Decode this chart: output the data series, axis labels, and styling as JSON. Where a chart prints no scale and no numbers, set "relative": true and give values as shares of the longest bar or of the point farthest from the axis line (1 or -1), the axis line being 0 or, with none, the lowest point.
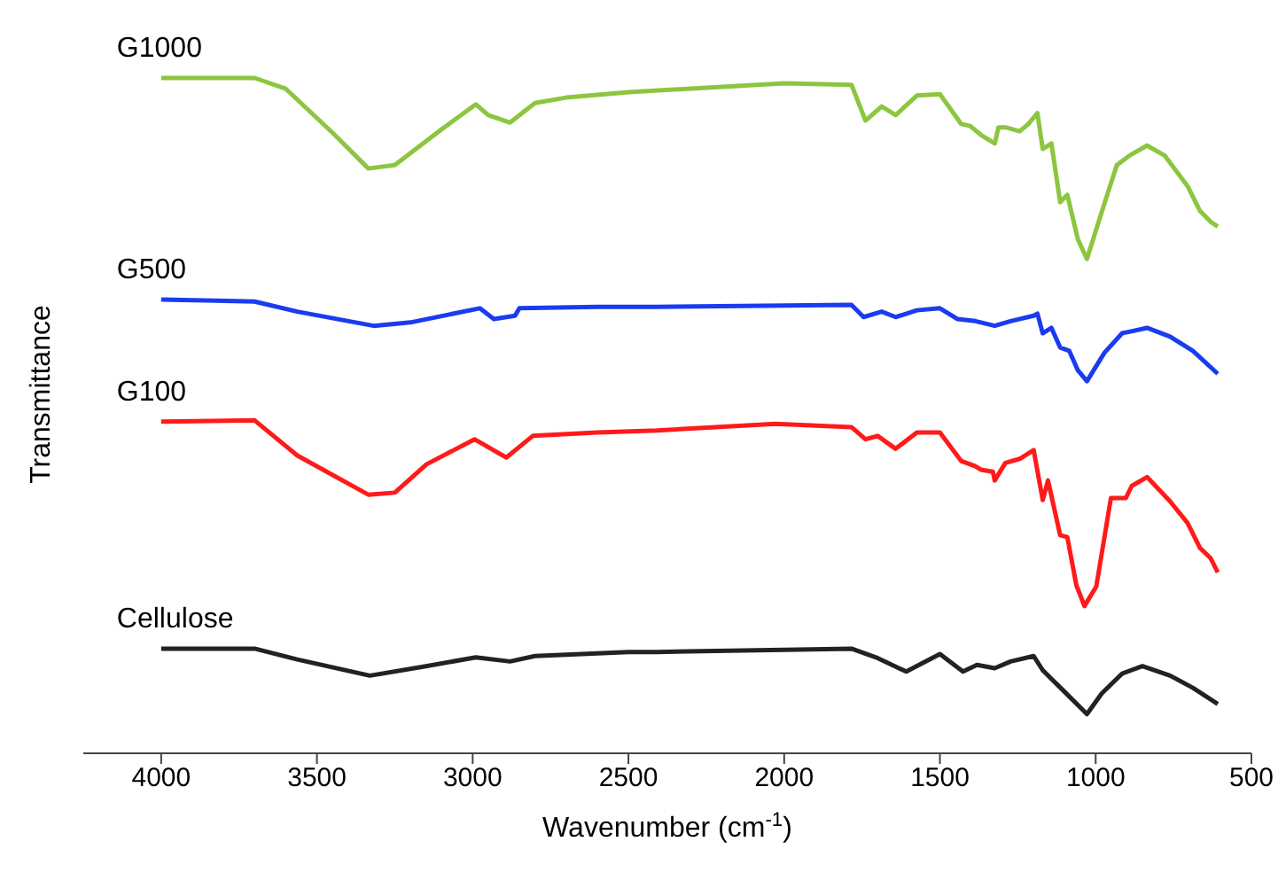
{
  "chart_data": {
    "type": "line",
    "relative": true,
    "xlabel": "Wavenumber (cm$^{-1}$)",
    "ylabel": "Transmittance",
    "xlim": [
      4250,
      500
    ],
    "xticks": [
      4000,
      3500,
      3000,
      2500,
      2000,
      1500,
      1000,
      500
    ],
    "grid": false,
    "legend": false,
    "marker": "none",
    "line_style": "solid",
    "series": [
      {
        "name": "G1000",
        "color": "#8cc63f",
        "x": [
          4000,
          3700,
          3600,
          3450,
          3335,
          3250,
          3100,
          2990,
          2950,
          2880,
          2800,
          2700,
          2500,
          2200,
          2000,
          1784,
          1739,
          1687,
          1642,
          1574,
          1500,
          1432,
          1403,
          1369,
          1324,
          1312,
          1290,
          1244,
          1216,
          1187,
          1170,
          1142,
          1114,
          1091,
          1057,
          1028,
          972,
          932,
          892,
          835,
          778,
          705,
          665,
          631,
          608
        ],
        "values": [
          1.0,
          1.0,
          0.984,
          0.919,
          0.866,
          0.871,
          0.924,
          0.961,
          0.945,
          0.934,
          0.963,
          0.971,
          0.979,
          0.987,
          0.992,
          0.99,
          0.937,
          0.958,
          0.945,
          0.974,
          0.976,
          0.932,
          0.929,
          0.916,
          0.903,
          0.927,
          0.927,
          0.921,
          0.932,
          0.948,
          0.895,
          0.903,
          0.816,
          0.827,
          0.761,
          0.732,
          0.814,
          0.871,
          0.885,
          0.9,
          0.885,
          0.84,
          0.803,
          0.787,
          0.78
        ]
      },
      {
        "name": "G500",
        "color": "#1a3cf0",
        "x": [
          4000,
          3700,
          3563,
          3318,
          3200,
          2977,
          2932,
          2864,
          2850,
          2600,
          2409,
          1784,
          1745,
          1687,
          1642,
          1574,
          1500,
          1443,
          1386,
          1324,
          1273,
          1199,
          1187,
          1170,
          1142,
          1114,
          1085,
          1057,
          1028,
          972,
          915,
          835,
          761,
          688,
          608
        ],
        "values": [
          0.672,
          0.669,
          0.654,
          0.633,
          0.638,
          0.659,
          0.643,
          0.648,
          0.659,
          0.661,
          0.661,
          0.664,
          0.646,
          0.654,
          0.646,
          0.656,
          0.659,
          0.643,
          0.64,
          0.633,
          0.64,
          0.648,
          0.651,
          0.622,
          0.63,
          0.601,
          0.596,
          0.567,
          0.551,
          0.593,
          0.622,
          0.63,
          0.617,
          0.596,
          0.562
        ]
      },
      {
        "name": "G100",
        "color": "#ff1a1a",
        "x": [
          4000,
          3700,
          3563,
          3335,
          3250,
          3148,
          2994,
          2892,
          2807,
          2600,
          2409,
          2028,
          1784,
          1739,
          1700,
          1642,
          1574,
          1500,
          1432,
          1386,
          1369,
          1330,
          1324,
          1290,
          1244,
          1199,
          1170,
          1153,
          1114,
          1091,
          1062,
          1036,
          998,
          951,
          903,
          884,
          835,
          761,
          705,
          665,
          631,
          608
        ],
        "values": [
          0.491,
          0.493,
          0.441,
          0.383,
          0.386,
          0.428,
          0.465,
          0.438,
          0.47,
          0.475,
          0.478,
          0.488,
          0.483,
          0.465,
          0.47,
          0.451,
          0.475,
          0.475,
          0.433,
          0.425,
          0.42,
          0.417,
          0.404,
          0.43,
          0.436,
          0.449,
          0.375,
          0.404,
          0.323,
          0.32,
          0.249,
          0.218,
          0.247,
          0.378,
          0.378,
          0.396,
          0.409,
          0.373,
          0.341,
          0.304,
          0.289,
          0.268
        ]
      },
      {
        "name": "Cellulose",
        "color": "#222222",
        "x": [
          4000,
          3700,
          3563,
          3330,
          3150,
          2990,
          2880,
          2800,
          2500,
          2409,
          1784,
          1705,
          1608,
          1500,
          1426,
          1381,
          1324,
          1273,
          1199,
          1170,
          1102,
          1028,
          980,
          915,
          850,
          761,
          688,
          608
        ],
        "values": [
          0.155,
          0.155,
          0.139,
          0.115,
          0.129,
          0.142,
          0.136,
          0.144,
          0.15,
          0.15,
          0.155,
          0.142,
          0.121,
          0.147,
          0.121,
          0.131,
          0.126,
          0.136,
          0.144,
          0.123,
          0.092,
          0.058,
          0.089,
          0.118,
          0.129,
          0.115,
          0.097,
          0.073
        ]
      }
    ]
  }
}
